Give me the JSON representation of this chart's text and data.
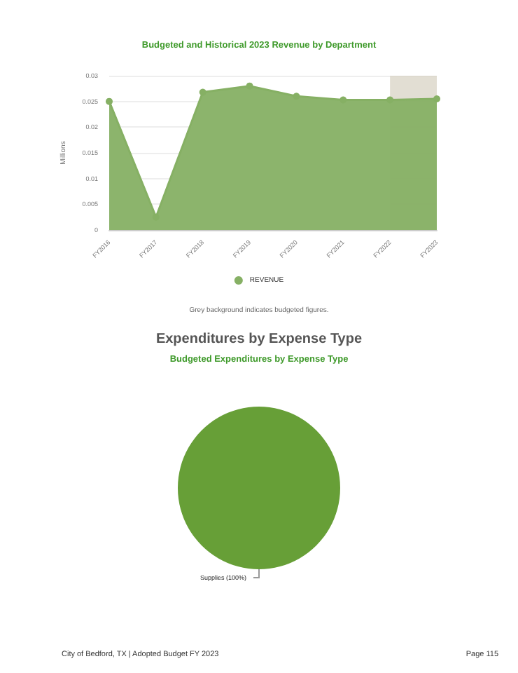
{
  "chart_data": [
    {
      "type": "area",
      "title": "Budgeted and Historical 2023 Revenue by Department",
      "ylabel": "Millions",
      "categories": [
        "FY2016",
        "FY2017",
        "FY2018",
        "FY2019",
        "FY2020",
        "FY2021",
        "FY2022",
        "FY2023"
      ],
      "series": [
        {
          "name": "REVENUE",
          "color": "#86b064",
          "values": [
            0.025,
            0.0025,
            0.0268,
            0.028,
            0.026,
            0.0253,
            0.0253,
            0.0255
          ]
        }
      ],
      "ylim": [
        0,
        0.03
      ],
      "yticks": [
        0,
        0.005,
        0.01,
        0.015,
        0.02,
        0.025,
        0.03
      ],
      "bands": [
        {
          "axis": "x",
          "from": "FY2022",
          "to": "FY2023",
          "color": "#d8d3c4"
        }
      ],
      "grid": "y",
      "legend": "bottom",
      "marker": "circle",
      "annotations": [
        "Grey background indicates budgeted figures."
      ]
    },
    {
      "type": "pie",
      "title": "Expenditures by Expense Type",
      "subtitle": "Budgeted Expenditures by Expense Type",
      "categories": [
        "Supplies"
      ],
      "values": [
        100
      ],
      "colors": [
        "#679f37"
      ],
      "value_labels": [
        "(100%)"
      ],
      "annotations": [
        "City of Bedford, TX | Adopted Budget FY 2023",
        "Page 115"
      ]
    }
  ]
}
